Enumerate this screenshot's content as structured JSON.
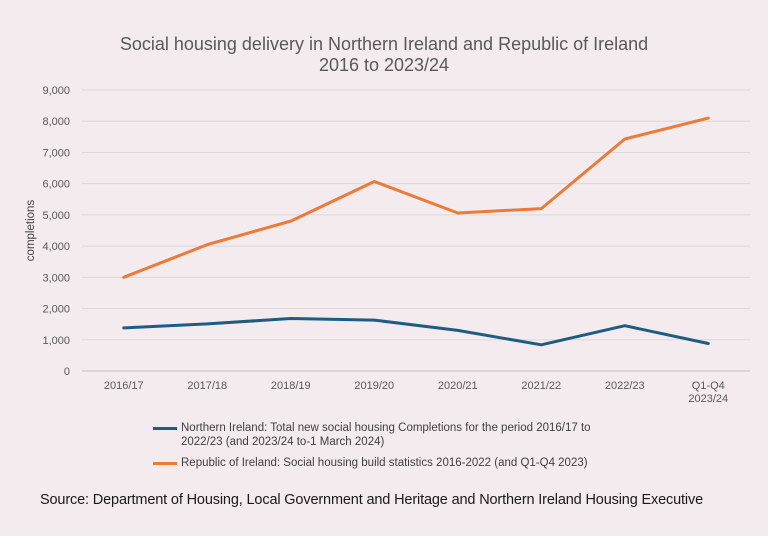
{
  "chart_data": {
    "type": "line",
    "title": "Social housing delivery in Northern Ireland and Republic of Ireland",
    "subtitle": "2016 to 2023/24",
    "ylabel": "completions",
    "xlabel": "",
    "ylim": [
      0,
      9000
    ],
    "yticks": [
      "0",
      "1,000",
      "2,000",
      "3,000",
      "4,000",
      "5,000",
      "6,000",
      "7,000",
      "8,000",
      "9,000"
    ],
    "categories": [
      "2016/17",
      "2017/18",
      "2018/19",
      "2019/20",
      "2020/21",
      "2021/22",
      "2022/23",
      "Q1-Q4 2023/24"
    ],
    "category_lines": [
      [
        "2016/17"
      ],
      [
        "2017/18"
      ],
      [
        "2018/19"
      ],
      [
        "2019/20"
      ],
      [
        "2020/21"
      ],
      [
        "2021/22"
      ],
      [
        "2022/23"
      ],
      [
        "Q1-Q4",
        "2023/24"
      ]
    ],
    "grid": true,
    "legend_position": "bottom",
    "series": [
      {
        "name": "Northern Ireland: Total new social housing Completions for the period 2016/17 to 2022/23 (and 2023/24 to-1 March 2024)",
        "color": "#1f5c82",
        "values": [
          1380,
          1510,
          1680,
          1630,
          1300,
          840,
          1450,
          880
        ]
      },
      {
        "name": "Republic of Ireland: Social housing build statistics 2016-2022 (and Q1-Q4 2023)",
        "color": "#ed7a36",
        "values": [
          3000,
          4050,
          4800,
          6070,
          5060,
          5200,
          7430,
          8100
        ]
      }
    ]
  },
  "legend": {
    "ni_line1": "Northern Ireland: Total new social housing Completions for the period 2016/17 to",
    "ni_line2": "2022/23 (and 2023/24 to-1 March 2024)",
    "roi": "Republic of Ireland: Social housing build statistics 2016-2022 (and Q1-Q4 2023)"
  },
  "source": "Source: Department of Housing, Local Government and Heritage and Northern Ireland Housing Executive"
}
